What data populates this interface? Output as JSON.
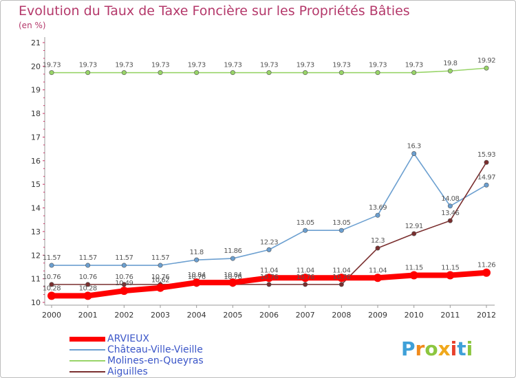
{
  "header": {
    "title": "Evolution du Taux de Taxe Foncière sur les Propriétés Bâties",
    "subtitle": "(en %)"
  },
  "logo": {
    "letters": [
      "P",
      "r",
      "o",
      "x",
      "i",
      "t",
      "i"
    ],
    "colors": [
      "#3fa0d8",
      "#f08a1c",
      "#8cc63f",
      "#f0a81c",
      "#e8412c",
      "#3fa0d8",
      "#8cc63f"
    ]
  },
  "chart_data": {
    "type": "line",
    "title": "Evolution du Taux de Taxe Foncière sur les Propriétés Bâties",
    "ylabel": "(en %)",
    "xlabel": "",
    "x": [
      "2000",
      "2001",
      "2002",
      "2003",
      "2004",
      "2005",
      "2006",
      "2007",
      "2008",
      "2009",
      "2010",
      "2011",
      "2012"
    ],
    "ylim": [
      10,
      21
    ],
    "yticks": [
      "10",
      "11",
      "12",
      "13",
      "14",
      "15",
      "16",
      "17",
      "18",
      "19",
      "20",
      "21"
    ],
    "grid": false,
    "legend_position": "bottom-left",
    "series": [
      {
        "name": "ARVIEUX",
        "color": "#ff0000",
        "values": [
          10.28,
          10.28,
          10.49,
          10.62,
          10.84,
          10.84,
          11.04,
          11.04,
          11.04,
          11.04,
          11.15,
          11.15,
          11.26
        ],
        "labels": [
          "10.28",
          "10.28",
          "10.49",
          "10.62",
          "10.84",
          "10.84",
          "11.04",
          "11.04",
          "11.04",
          "11.04",
          "11.15",
          "11.15",
          "11.26"
        ]
      },
      {
        "name": "Château-Ville-Vieille",
        "color": "#6b9fd0",
        "values": [
          11.57,
          11.57,
          11.57,
          11.57,
          11.8,
          11.86,
          12.23,
          13.05,
          13.05,
          13.69,
          16.3,
          14.08,
          14.97
        ],
        "labels": [
          "11.57",
          "11.57",
          "11.57",
          "11.57",
          "11.8",
          "11.86",
          "12.23",
          "13.05",
          "13.05",
          "13.69",
          "16.3",
          "14.08",
          "14.97"
        ]
      },
      {
        "name": "Molines-en-Queyras",
        "color": "#98d468",
        "values": [
          19.73,
          19.73,
          19.73,
          19.73,
          19.73,
          19.73,
          19.73,
          19.73,
          19.73,
          19.73,
          19.73,
          19.8,
          19.92
        ],
        "labels": [
          "19.73",
          "19.73",
          "19.73",
          "19.73",
          "19.73",
          "19.73",
          "19.73",
          "19.73",
          "19.73",
          "19.73",
          "19.73",
          "19.8",
          "19.92"
        ]
      },
      {
        "name": "Aiguilles",
        "color": "#7a2e2e",
        "values": [
          10.76,
          10.76,
          10.76,
          10.76,
          10.76,
          10.76,
          10.76,
          10.76,
          10.76,
          12.3,
          12.91,
          13.46,
          15.93
        ],
        "labels": [
          "10.76",
          "10.76",
          "10.76",
          "10.76",
          "10.76",
          "10.76",
          "10.76",
          "10.76",
          "10.76",
          "12.3",
          "12.91",
          "13.46",
          "15.93"
        ]
      }
    ]
  }
}
